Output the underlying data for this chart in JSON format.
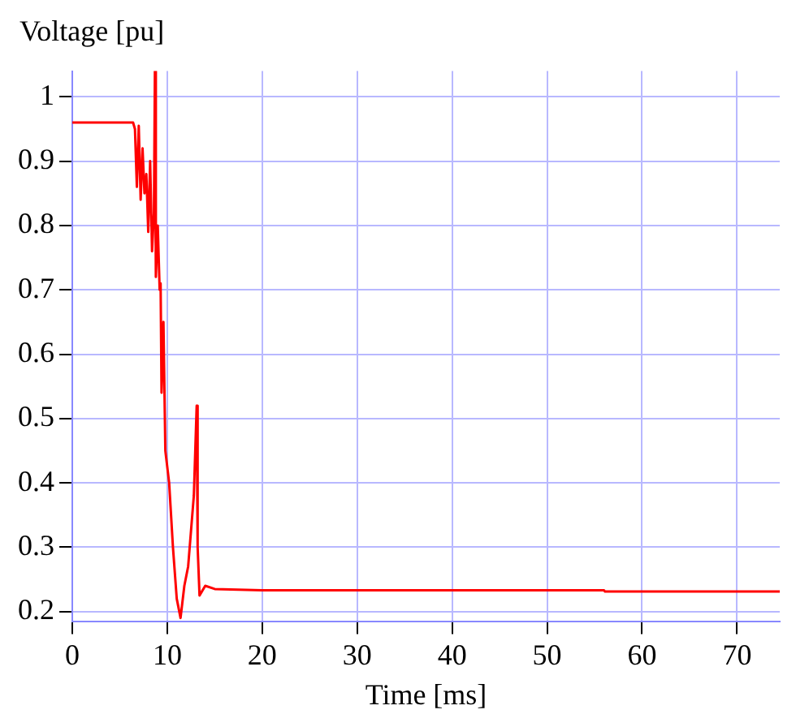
{
  "chart_data": {
    "type": "line",
    "xlabel": "Time [ms]",
    "ylabel": "Voltage [pu]",
    "x": [
      0,
      6.4,
      6.6,
      6.8,
      7.0,
      7.2,
      7.4,
      7.6,
      7.8,
      8.0,
      8.2,
      8.4,
      8.6,
      8.7,
      8.8,
      9.0,
      9.2,
      9.3,
      9.4,
      9.6,
      9.8,
      10.2,
      10.6,
      11.0,
      11.4,
      11.8,
      12.2,
      12.8,
      13.1,
      13.2,
      13.4,
      14,
      15,
      20,
      56,
      56.1,
      74.5
    ],
    "series": [
      {
        "color": "#ff0000",
        "values": [
          0.96,
          0.96,
          0.95,
          0.86,
          0.955,
          0.84,
          0.92,
          0.85,
          0.88,
          0.79,
          0.9,
          0.76,
          0.82,
          1.04,
          0.72,
          0.8,
          0.7,
          0.71,
          0.54,
          0.65,
          0.45,
          0.4,
          0.3,
          0.22,
          0.19,
          0.24,
          0.27,
          0.38,
          0.52,
          0.3,
          0.225,
          0.24,
          0.235,
          0.233,
          0.233,
          0.231,
          0.231
        ]
      }
    ],
    "xlim": [
      0,
      74.5
    ],
    "xticks": [
      0,
      10,
      20,
      30,
      40,
      50,
      60,
      70
    ],
    "ylim": [
      0.185,
      1.04
    ],
    "yticks": [
      0.2,
      0.3,
      0.4,
      0.5,
      0.6,
      0.7,
      0.8,
      0.9,
      1
    ],
    "grid": true,
    "legend": false,
    "marker": "none",
    "line_style": "solid"
  }
}
